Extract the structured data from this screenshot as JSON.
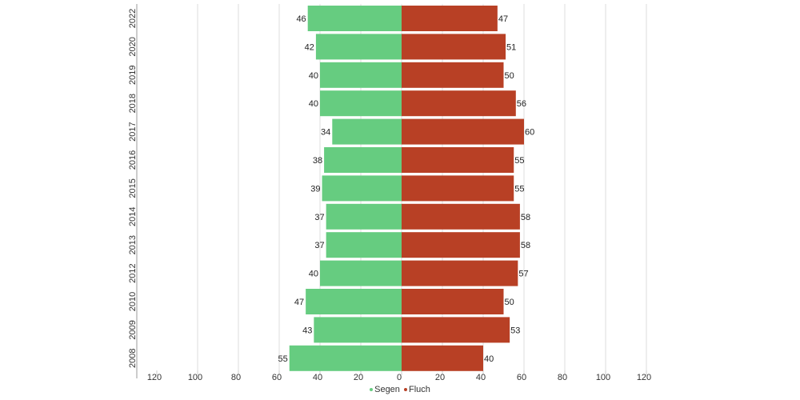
{
  "chart_data": {
    "type": "bar",
    "orientation": "horizontal-diverging",
    "categories": [
      "2022",
      "2020",
      "2019",
      "2018",
      "2017",
      "2016",
      "2015",
      "2014",
      "2013",
      "2012",
      "2010",
      "2009",
      "2008"
    ],
    "series": [
      {
        "name": "Segen",
        "color": "#66cc80",
        "direction": "left",
        "values": [
          46,
          42,
          40,
          40,
          34,
          38,
          39,
          37,
          37,
          40,
          47,
          43,
          55
        ]
      },
      {
        "name": "Fluch",
        "color": "#b84025",
        "direction": "right",
        "values": [
          47,
          51,
          50,
          56,
          60,
          55,
          55,
          58,
          58,
          57,
          50,
          53,
          40
        ]
      }
    ],
    "x_ticks": [
      "120",
      "100",
      "80",
      "60",
      "40",
      "20",
      "0",
      "20",
      "40",
      "60",
      "80",
      "100",
      "120"
    ],
    "xlim": [
      -120,
      120
    ],
    "grid": true,
    "legend_position": "bottom"
  }
}
